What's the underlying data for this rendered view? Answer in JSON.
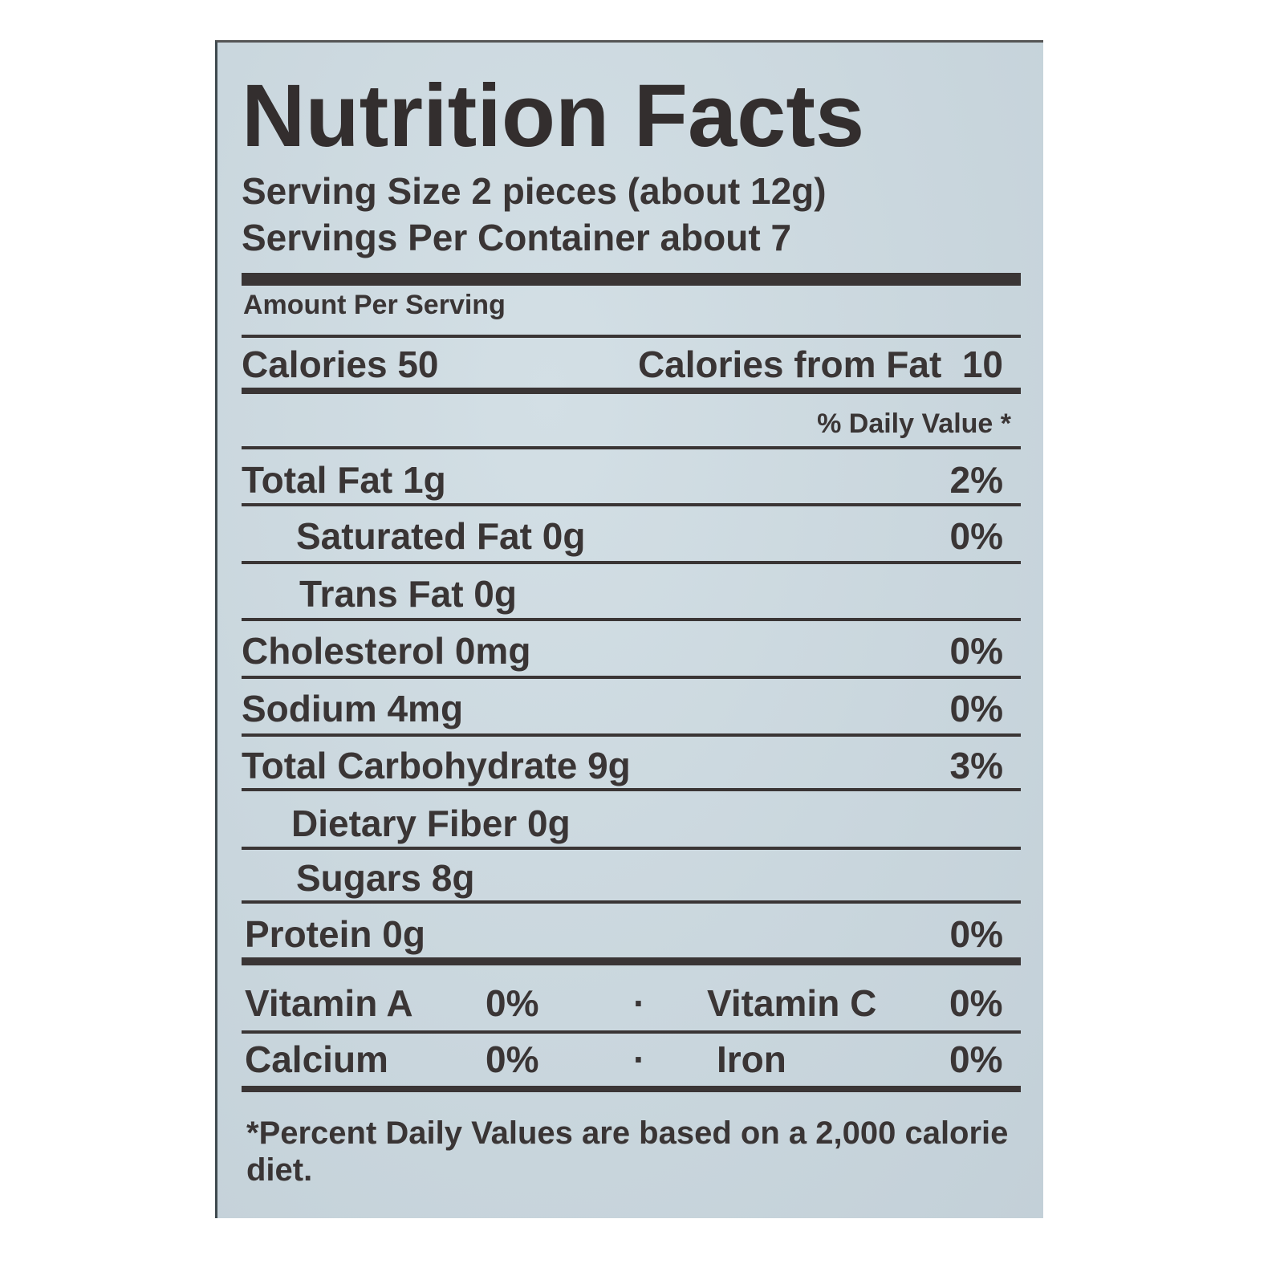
{
  "label": {
    "title": "Nutrition Facts",
    "serving_size": "Serving Size 2 pieces (about 12g)",
    "servings_per_container": "Servings Per Container about 7",
    "amount_per_serving": "Amount Per Serving",
    "calories_label": "Calories",
    "calories_value": "50",
    "calories_from_fat_label": "Calories from Fat",
    "calories_from_fat_value": "10",
    "daily_value_header": "% Daily Value *",
    "nutrients": [
      {
        "name": "Total Fat",
        "amount": "1g",
        "dv": "2%"
      },
      {
        "name": "Saturated Fat",
        "amount": "0g",
        "dv": "0%"
      },
      {
        "name": "Trans Fat",
        "amount": "0g",
        "dv": ""
      },
      {
        "name": "Cholesterol",
        "amount": "0mg",
        "dv": "0%"
      },
      {
        "name": "Sodium",
        "amount": "4mg",
        "dv": "0%"
      },
      {
        "name": "Total Carbohydrate",
        "amount": "9g",
        "dv": "3%"
      },
      {
        "name": "Dietary Fiber",
        "amount": "0g",
        "dv": ""
      },
      {
        "name": "Sugars",
        "amount": "8g",
        "dv": ""
      },
      {
        "name": "Protein",
        "amount": "0g",
        "dv": "0%"
      }
    ],
    "vitamins": [
      {
        "name": "Vitamin A",
        "dv": "0%"
      },
      {
        "name": "Vitamin C",
        "dv": "0%"
      },
      {
        "name": "Calcium",
        "dv": "0%"
      },
      {
        "name": "Iron",
        "dv": "0%"
      }
    ],
    "separator": "·",
    "footnote": "*Percent Daily Values are based on a 2,000 calorie diet."
  },
  "colors": {
    "background": "#cbd8df",
    "ink": "#3a3535"
  }
}
